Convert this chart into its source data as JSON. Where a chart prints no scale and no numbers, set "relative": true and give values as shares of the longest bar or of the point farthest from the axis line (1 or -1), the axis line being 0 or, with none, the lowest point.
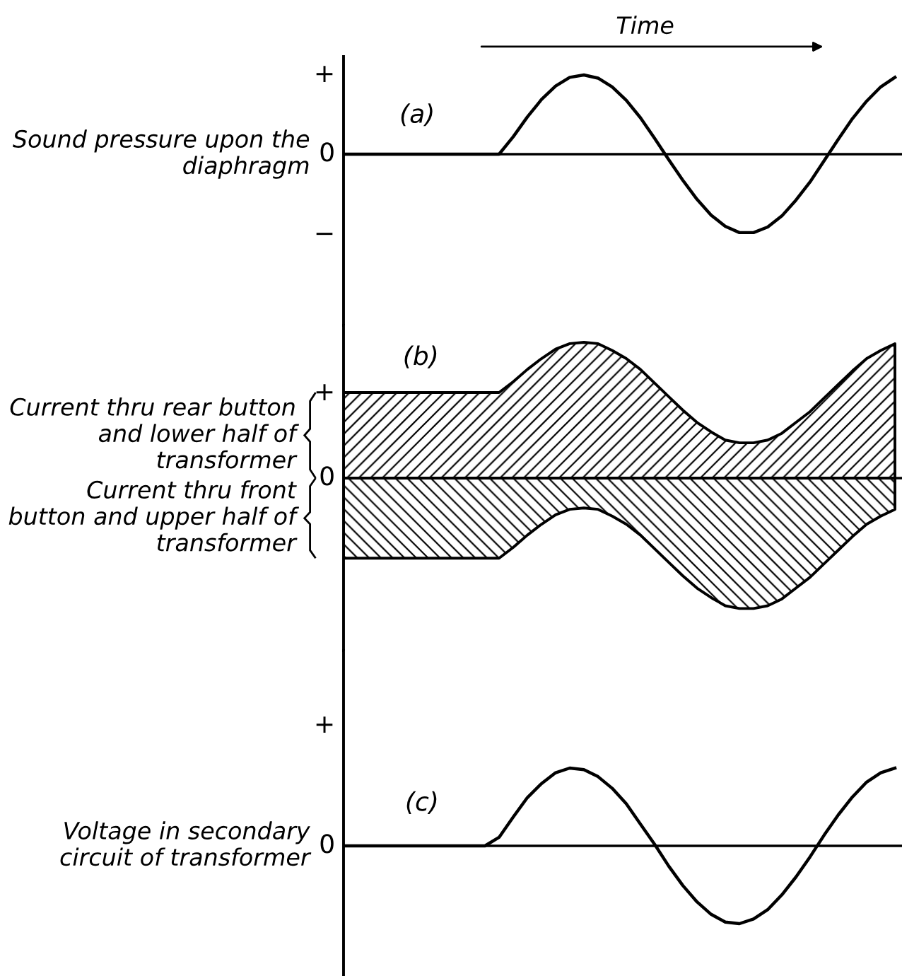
{
  "chart_data": [
    {
      "type": "line",
      "relative": true,
      "xlabel": "Time",
      "ylabel": "Sound pressure upon the diaphragm",
      "annotations": [
        "(a)",
        "+",
        "0",
        "−"
      ],
      "categories": [
        null,
        null,
        null,
        null,
        null,
        null,
        null,
        null,
        null,
        null,
        null,
        null,
        null,
        null,
        null,
        null,
        null,
        null,
        null,
        null,
        null,
        null,
        null,
        null,
        null,
        null,
        null,
        null,
        null,
        null,
        null,
        null,
        null,
        null,
        null,
        null,
        null,
        null,
        null,
        null
      ],
      "ref_lines": [
        {
          "axis": "y",
          "value": 0,
          "color": "#000000"
        }
      ],
      "series": [
        {
          "color": "#000000",
          "values": [
            0,
            0,
            0,
            0,
            0,
            0,
            0,
            0,
            0,
            0,
            0,
            0,
            0.22,
            0.47,
            0.69,
            0.86,
            0.97,
            1.0,
            0.96,
            0.85,
            0.68,
            0.46,
            0.2,
            -0.07,
            -0.33,
            -0.57,
            -0.77,
            -0.91,
            -0.99,
            -0.99,
            -0.92,
            -0.78,
            -0.58,
            -0.35,
            -0.08,
            0.19,
            0.45,
            0.67,
            0.85,
            0.97
          ]
        }
      ]
    },
    {
      "type": "area",
      "relative": true,
      "annotations": [
        "(b)",
        "+",
        "0"
      ],
      "categories": [
        null,
        null,
        null,
        null,
        null,
        null,
        null,
        null,
        null,
        null,
        null,
        null,
        null,
        null,
        null,
        null,
        null,
        null,
        null,
        null,
        null,
        null,
        null,
        null,
        null,
        null,
        null,
        null,
        null,
        null,
        null,
        null,
        null,
        null,
        null,
        null,
        null,
        null,
        null,
        null
      ],
      "ref_lines": [
        {
          "axis": "y",
          "value": 0,
          "color": "#000000"
        }
      ],
      "series": [
        {
          "name": "Current thru rear button and lower half of transformer",
          "color": "#000000",
          "values": [
            0.63,
            0.63,
            0.63,
            0.63,
            0.63,
            0.63,
            0.63,
            0.63,
            0.63,
            0.63,
            0.63,
            0.63,
            0.71,
            0.8,
            0.88,
            0.95,
            0.99,
            1.0,
            0.99,
            0.94,
            0.88,
            0.8,
            0.7,
            0.6,
            0.5,
            0.41,
            0.34,
            0.28,
            0.26,
            0.26,
            0.28,
            0.33,
            0.41,
            0.49,
            0.59,
            0.69,
            0.79,
            0.88,
            0.94,
            0.99
          ]
        },
        {
          "name": "Current thru front button and upper half of transformer",
          "color": "#000000",
          "values": [
            -0.59,
            -0.59,
            -0.59,
            -0.59,
            -0.59,
            -0.59,
            -0.59,
            -0.59,
            -0.59,
            -0.59,
            -0.59,
            -0.59,
            -0.51,
            -0.42,
            -0.34,
            -0.27,
            -0.23,
            -0.22,
            -0.23,
            -0.28,
            -0.34,
            -0.42,
            -0.52,
            -0.62,
            -0.72,
            -0.81,
            -0.88,
            -0.94,
            -0.96,
            -0.96,
            -0.94,
            -0.89,
            -0.81,
            -0.73,
            -0.63,
            -0.53,
            -0.43,
            -0.34,
            -0.28,
            -0.23
          ]
        }
      ]
    },
    {
      "type": "line",
      "relative": true,
      "ylabel": "Voltage in secondary circuit of transformer",
      "annotations": [
        "(c)",
        "+",
        "0"
      ],
      "categories": [
        null,
        null,
        null,
        null,
        null,
        null,
        null,
        null,
        null,
        null,
        null,
        null,
        null,
        null,
        null,
        null,
        null,
        null,
        null,
        null,
        null,
        null,
        null,
        null,
        null,
        null,
        null,
        null,
        null,
        null,
        null,
        null,
        null,
        null,
        null,
        null,
        null,
        null,
        null,
        null
      ],
      "ref_lines": [
        {
          "axis": "y",
          "value": 0,
          "color": "#000000"
        }
      ],
      "series": [
        {
          "color": "#000000",
          "values": [
            0,
            0,
            0,
            0,
            0,
            0,
            0,
            0,
            0,
            0,
            0,
            0.11,
            0.37,
            0.62,
            0.8,
            0.94,
            1.0,
            0.98,
            0.89,
            0.74,
            0.54,
            0.28,
            0.02,
            -0.26,
            -0.51,
            -0.72,
            -0.88,
            -0.98,
            -1.0,
            -0.94,
            -0.82,
            -0.63,
            -0.4,
            -0.14,
            0.14,
            0.4,
            0.63,
            0.82,
            0.94,
            1.0
          ]
        }
      ]
    }
  ]
}
